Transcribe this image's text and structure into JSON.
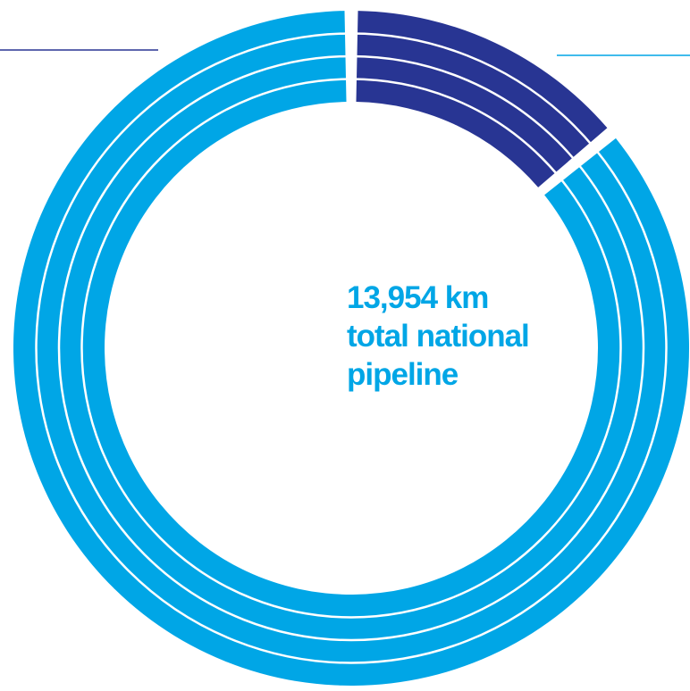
{
  "chart_data": {
    "type": "pie",
    "style": "donut",
    "center_text": {
      "line1": "13,954 km",
      "line2": "total national",
      "line3": "pipeline"
    },
    "slices": [
      {
        "value_fraction": 0.14,
        "color": "#283593"
      },
      {
        "value_fraction": 0.86,
        "color": "#00a6e6"
      }
    ],
    "rings": 4,
    "colors": {
      "light_blue": "#00a6e6",
      "dark_blue": "#283593",
      "text": "#00a6e6"
    }
  }
}
